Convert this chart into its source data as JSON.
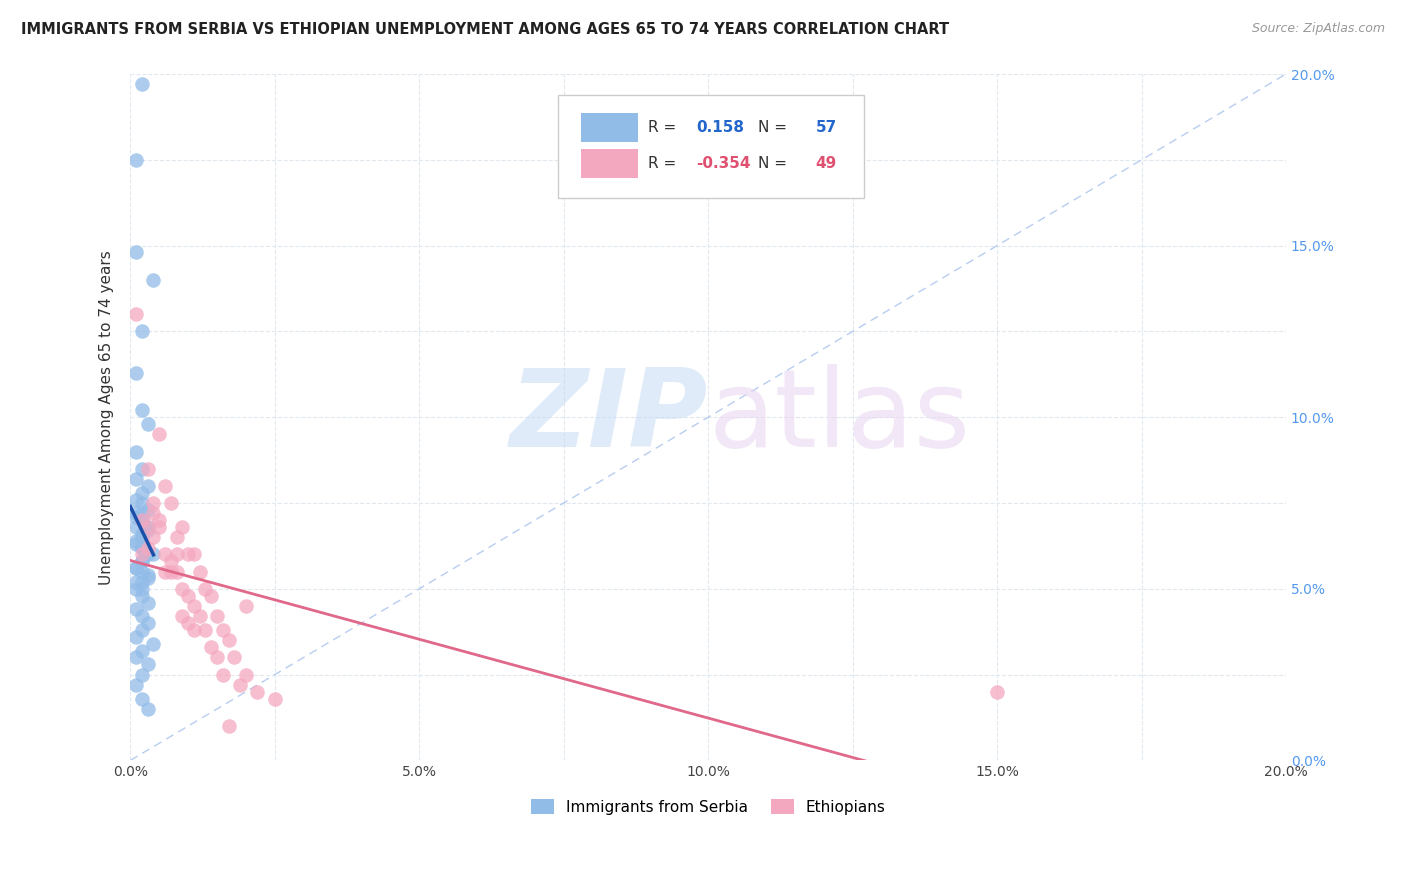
{
  "title": "IMMIGRANTS FROM SERBIA VS ETHIOPIAN UNEMPLOYMENT AMONG AGES 65 TO 74 YEARS CORRELATION CHART",
  "source": "Source: ZipAtlas.com",
  "ylabel": "Unemployment Among Ages 65 to 74 years",
  "xlim": [
    0.0,
    0.2
  ],
  "ylim": [
    0.0,
    0.2
  ],
  "serbia_R": 0.158,
  "serbia_N": 57,
  "ethiopia_R": -0.354,
  "ethiopia_N": 49,
  "serbia_color": "#92bce8",
  "ethiopia_color": "#f4a8c0",
  "serbia_line_color": "#1a4faa",
  "ethiopia_line_color": "#e06888",
  "diagonal_color": "#b0c8ee",
  "background_color": "#ffffff",
  "grid_color": "#e0e8f0",
  "serbia_x": [
    0.002,
    0.001,
    0.004,
    0.001,
    0.002,
    0.001,
    0.002,
    0.003,
    0.001,
    0.002,
    0.001,
    0.003,
    0.002,
    0.001,
    0.002,
    0.003,
    0.002,
    0.001,
    0.002,
    0.001,
    0.003,
    0.002,
    0.001,
    0.002,
    0.003,
    0.002,
    0.001,
    0.002,
    0.003,
    0.001,
    0.002,
    0.001,
    0.003,
    0.002,
    0.001,
    0.002,
    0.004,
    0.002,
    0.001,
    0.003,
    0.002,
    0.001,
    0.002,
    0.003,
    0.001,
    0.002,
    0.003,
    0.002,
    0.001,
    0.004,
    0.002,
    0.001,
    0.003,
    0.002,
    0.001,
    0.002,
    0.003
  ],
  "serbia_y": [
    0.197,
    0.175,
    0.14,
    0.148,
    0.125,
    0.113,
    0.102,
    0.098,
    0.09,
    0.085,
    0.082,
    0.08,
    0.078,
    0.076,
    0.075,
    0.073,
    0.072,
    0.071,
    0.07,
    0.068,
    0.067,
    0.065,
    0.063,
    0.062,
    0.06,
    0.058,
    0.056,
    0.055,
    0.053,
    0.052,
    0.05,
    0.072,
    0.068,
    0.066,
    0.064,
    0.062,
    0.06,
    0.058,
    0.056,
    0.054,
    0.052,
    0.05,
    0.048,
    0.046,
    0.044,
    0.042,
    0.04,
    0.038,
    0.036,
    0.034,
    0.032,
    0.03,
    0.028,
    0.025,
    0.022,
    0.018,
    0.015
  ],
  "ethiopia_x": [
    0.001,
    0.002,
    0.003,
    0.002,
    0.004,
    0.003,
    0.005,
    0.004,
    0.003,
    0.006,
    0.005,
    0.004,
    0.007,
    0.006,
    0.005,
    0.008,
    0.007,
    0.006,
    0.009,
    0.008,
    0.007,
    0.01,
    0.009,
    0.008,
    0.011,
    0.01,
    0.009,
    0.012,
    0.011,
    0.01,
    0.013,
    0.012,
    0.011,
    0.014,
    0.013,
    0.015,
    0.014,
    0.016,
    0.015,
    0.017,
    0.016,
    0.018,
    0.019,
    0.02,
    0.022,
    0.025,
    0.15,
    0.02,
    0.017
  ],
  "ethiopia_y": [
    0.13,
    0.07,
    0.085,
    0.06,
    0.075,
    0.068,
    0.095,
    0.072,
    0.062,
    0.08,
    0.07,
    0.065,
    0.075,
    0.06,
    0.068,
    0.065,
    0.058,
    0.055,
    0.068,
    0.06,
    0.055,
    0.06,
    0.05,
    0.055,
    0.06,
    0.048,
    0.042,
    0.055,
    0.045,
    0.04,
    0.05,
    0.042,
    0.038,
    0.048,
    0.038,
    0.042,
    0.033,
    0.038,
    0.03,
    0.035,
    0.025,
    0.03,
    0.022,
    0.025,
    0.02,
    0.018,
    0.02,
    0.045,
    0.01
  ]
}
